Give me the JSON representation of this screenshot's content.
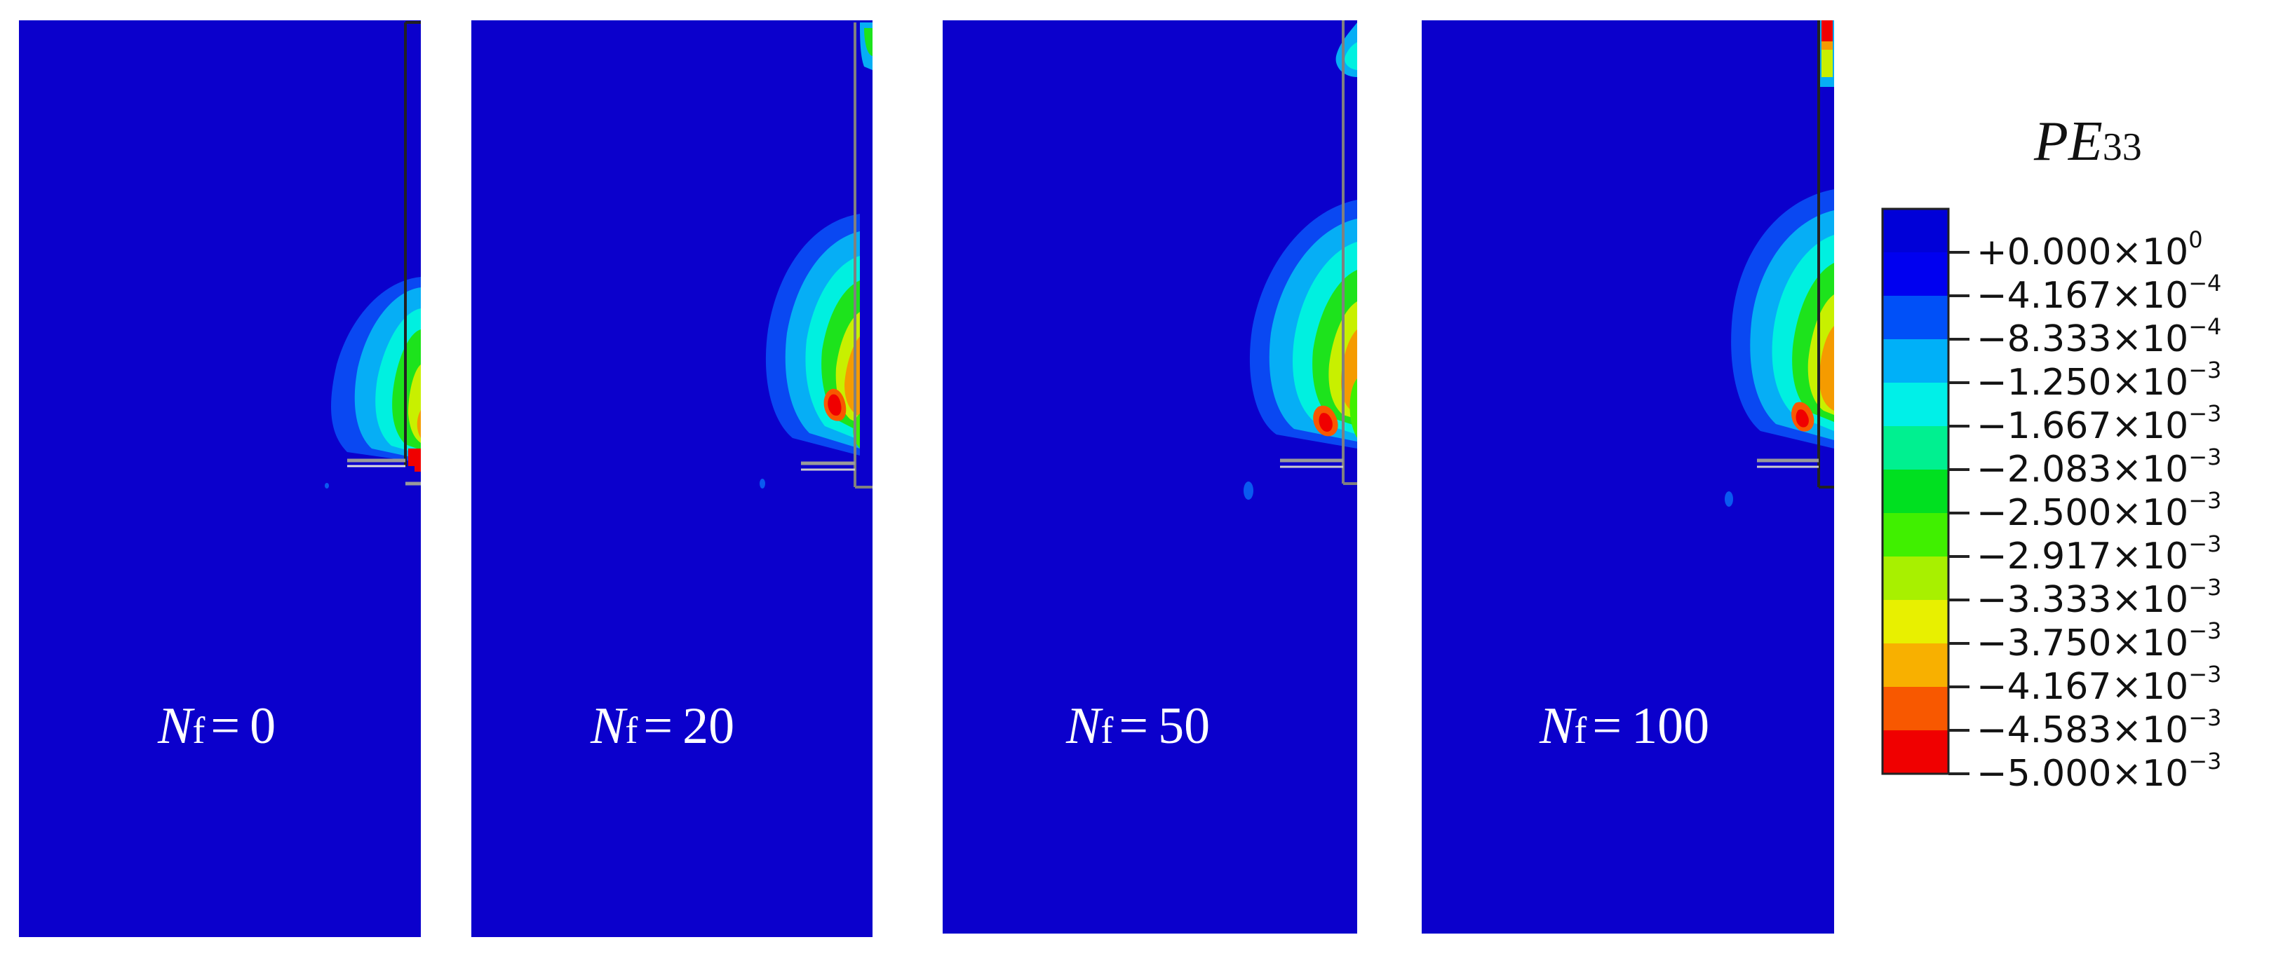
{
  "figure": {
    "panels": [
      {
        "cycles_symbol": "N",
        "cycles_subscript": "f",
        "equals": "=",
        "cycles_value": "0"
      },
      {
        "cycles_symbol": "N",
        "cycles_subscript": "f",
        "equals": "=",
        "cycles_value": "20"
      },
      {
        "cycles_symbol": "N",
        "cycles_subscript": "f",
        "equals": "=",
        "cycles_value": "50"
      },
      {
        "cycles_symbol": "N",
        "cycles_subscript": "f",
        "equals": "=",
        "cycles_value": "100"
      }
    ],
    "legend": {
      "title_main": "PE",
      "title_sub": "33",
      "levels": [
        {
          "mantissa": "+0.000",
          "times": "×10",
          "exponent": "0"
        },
        {
          "mantissa": "−4.167",
          "times": "×10",
          "exponent": "−4"
        },
        {
          "mantissa": "−8.333",
          "times": "×10",
          "exponent": "−4"
        },
        {
          "mantissa": "−1.250",
          "times": "×10",
          "exponent": "−3"
        },
        {
          "mantissa": "−1.667",
          "times": "×10",
          "exponent": "−3"
        },
        {
          "mantissa": "−2.083",
          "times": "×10",
          "exponent": "−3"
        },
        {
          "mantissa": "−2.500",
          "times": "×10",
          "exponent": "−3"
        },
        {
          "mantissa": "−2.917",
          "times": "×10",
          "exponent": "−3"
        },
        {
          "mantissa": "−3.333",
          "times": "×10",
          "exponent": "−3"
        },
        {
          "mantissa": "−3.750",
          "times": "×10",
          "exponent": "−3"
        },
        {
          "mantissa": "−4.167",
          "times": "×10",
          "exponent": "−3"
        },
        {
          "mantissa": "−4.583",
          "times": "×10",
          "exponent": "−3"
        },
        {
          "mantissa": "−5.000",
          "times": "×10",
          "exponent": "−3"
        }
      ],
      "band_colors": [
        "#0000d8",
        "#0000f0",
        "#0050f8",
        "#00b0f8",
        "#00f0e8",
        "#00f090",
        "#00e020",
        "#40f000",
        "#a8f000",
        "#e8f000",
        "#f8b000",
        "#f85800",
        "#f00000"
      ]
    },
    "colors": {
      "background_field": "#0b00cc",
      "outline_dark": "#222222",
      "outline_gray": "#808080",
      "label_text": "#ffffff"
    }
  }
}
